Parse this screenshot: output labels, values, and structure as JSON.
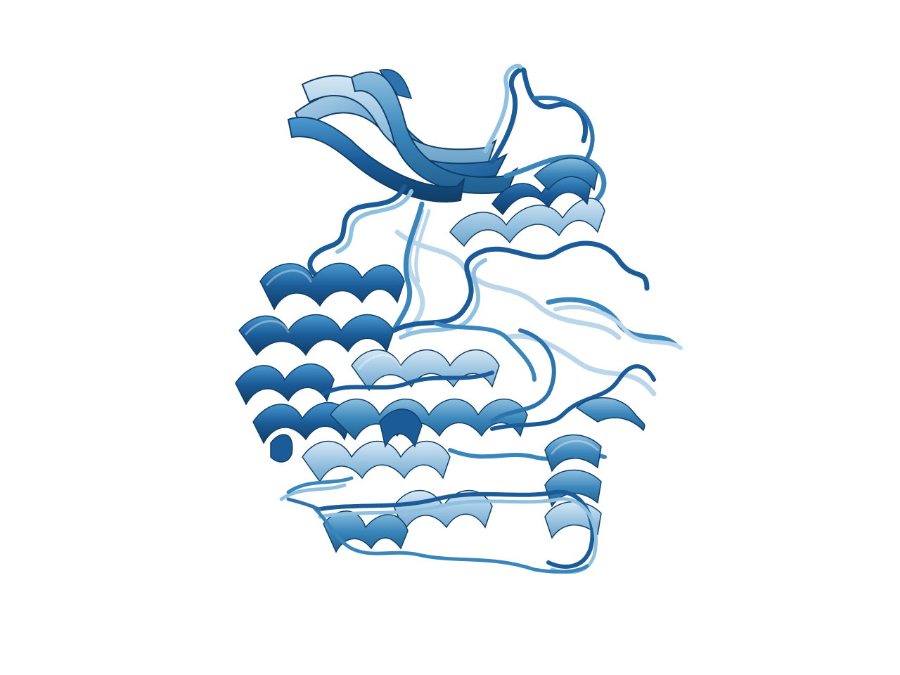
{
  "scene": {
    "subject": "",
    "background": "#ffffff",
    "palette": {
      "dark": "#1b5c98",
      "mid": "#3a86bb",
      "light": "#8ec0df",
      "pale": "#b9d6ea",
      "outline": "#0f3d66"
    }
  }
}
